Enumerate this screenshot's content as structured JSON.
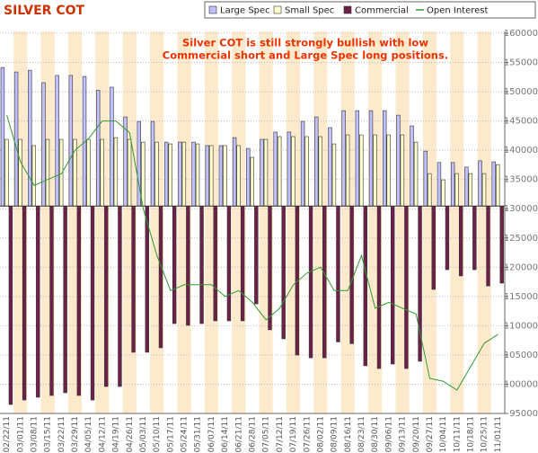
{
  "chart_data": {
    "type": "bar",
    "title": "SILVER COT",
    "annotations": [
      "Silver COT is still strongly bullish with low",
      "Commercial short and Large Spec long positions."
    ],
    "categories": [
      "02/22/11",
      "03/01/11",
      "03/08/11",
      "03/15/11",
      "03/22/11",
      "03/29/11",
      "04/05/11",
      "04/12/11",
      "04/19/11",
      "04/26/11",
      "05/03/11",
      "05/10/11",
      "05/17/11",
      "05/24/11",
      "05/31/11",
      "06/07/11",
      "06/14/11",
      "06/21/11",
      "06/28/11",
      "07/05/11",
      "07/12/11",
      "07/19/11",
      "07/26/11",
      "08/02/11",
      "08/09/11",
      "08/16/11",
      "08/23/11",
      "08/30/11",
      "09/06/11",
      "09/13/11",
      "09/20/11",
      "09/27/11",
      "10/04/11",
      "10/11/11",
      "10/18/11",
      "10/25/11",
      "11/01/11"
    ],
    "ylim": [
      -60000,
      50000
    ],
    "y2lim": [
      95000,
      160000
    ],
    "y2ticks": [
      95000,
      100000,
      105000,
      110000,
      115000,
      120000,
      125000,
      130000,
      135000,
      140000,
      145000,
      150000,
      155000,
      160000
    ],
    "grid": true,
    "legend": "top-right",
    "series": [
      {
        "name": "Large Spec",
        "color": "#c0c0ff",
        "values": [
          40100,
          38800,
          39300,
          35700,
          37800,
          37800,
          37500,
          33500,
          34400,
          25800,
          24500,
          24500,
          18500,
          18500,
          18500,
          17500,
          17500,
          19800,
          16700,
          19300,
          21400,
          21400,
          24500,
          25800,
          22700,
          27600,
          27600,
          27600,
          27600,
          26300,
          23200,
          15900,
          12600,
          12600,
          11300,
          13100,
          12800
        ]
      },
      {
        "name": "Small Spec",
        "color": "#ffffcc",
        "values": [
          19300,
          19300,
          17500,
          19300,
          19300,
          19300,
          19300,
          19300,
          19800,
          19300,
          18500,
          18500,
          18000,
          18500,
          18000,
          17500,
          17500,
          17500,
          14100,
          19300,
          20100,
          20100,
          20100,
          20100,
          18000,
          20600,
          20600,
          20600,
          20600,
          20600,
          18500,
          9400,
          7600,
          9400,
          9400,
          9400,
          12000
        ]
      },
      {
        "name": "Commercial",
        "color": "#6e2048",
        "values": [
          -57400,
          -56100,
          -55300,
          -54800,
          -54000,
          -54800,
          -56100,
          -52200,
          -52200,
          -42300,
          -42300,
          -41000,
          -34000,
          -34500,
          -34000,
          -33200,
          -33200,
          -33200,
          -28300,
          -35800,
          -38400,
          -43100,
          -43900,
          -43900,
          -39300,
          -39800,
          -46200,
          -47000,
          -45700,
          -47000,
          -44900,
          -24100,
          -18400,
          -20200,
          -18400,
          -23100,
          -22300
        ]
      },
      {
        "name": "Open Interest",
        "color": "#339933",
        "axis": "y2",
        "values": [
          146000,
          138000,
          134000,
          135000,
          136000,
          140000,
          142000,
          145000,
          145000,
          143000,
          130000,
          122000,
          116000,
          117000,
          117000,
          117000,
          115000,
          116000,
          114000,
          111000,
          113000,
          117000,
          119000,
          120000,
          116000,
          116000,
          122000,
          113000,
          114000,
          113000,
          112000,
          101000,
          100500,
          99000,
          103000,
          107000,
          108500
        ]
      }
    ]
  }
}
